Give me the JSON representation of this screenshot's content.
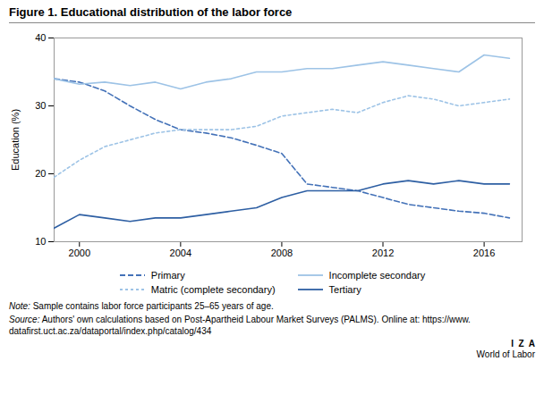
{
  "chart_data": {
    "type": "line",
    "title": "Figure 1. Educational distribution of the labor force",
    "y_label": "Education (%)",
    "x": [
      1999,
      2000,
      2001,
      2002,
      2003,
      2004,
      2005,
      2006,
      2007,
      2008,
      2009,
      2010,
      2011,
      2012,
      2013,
      2014,
      2015,
      2016,
      2017
    ],
    "series": [
      {
        "name": "Primary",
        "color": "#4472b8",
        "line_style": "dashed",
        "values": [
          34.0,
          33.5,
          32.2,
          30.0,
          28.0,
          26.5,
          26.0,
          25.3,
          24.2,
          23.0,
          18.5,
          18.0,
          17.5,
          16.5,
          15.5,
          15.0,
          14.5,
          14.2,
          13.5
        ]
      },
      {
        "name": "Incomplete secondary",
        "color": "#9dc3e6",
        "line_style": "solid",
        "values": [
          34.0,
          33.2,
          33.5,
          33.0,
          33.5,
          32.5,
          33.5,
          34.0,
          35.0,
          35.0,
          35.5,
          35.5,
          36.0,
          36.5,
          36.0,
          35.5,
          35.0,
          37.5,
          37.0
        ]
      },
      {
        "name": "Matric (complete secondary)",
        "color": "#9dc3e6",
        "line_style": "dotted",
        "values": [
          19.5,
          22.0,
          24.0,
          25.0,
          26.0,
          26.5,
          26.5,
          26.5,
          27.0,
          28.5,
          29.0,
          29.5,
          29.0,
          30.5,
          31.5,
          31.0,
          30.0,
          30.5,
          31.0
        ]
      },
      {
        "name": "Tertiary",
        "color": "#2e5fa3",
        "line_style": "solid",
        "values": [
          12.0,
          14.0,
          13.5,
          13.0,
          13.5,
          13.5,
          14.0,
          14.5,
          15.0,
          16.5,
          17.5,
          17.5,
          17.5,
          18.5,
          19.0,
          18.5,
          19.0,
          18.5,
          18.5
        ]
      }
    ],
    "xlim": [
      1999,
      2017.5
    ],
    "xticks": [
      2000,
      2004,
      2008,
      2012,
      2016
    ],
    "ylim": [
      10,
      40
    ],
    "yticks": [
      10,
      20,
      30,
      40
    ],
    "grid": false,
    "legend": "bottom",
    "note_label": "Note:",
    "note": " Sample contains labor force participants 25–65 years of age.",
    "source_label": "Source:",
    "source": " Authors' own calculations based on Post-Apartheid Labour Market Surveys (PALMS). Online at: https://www.\ndatafirst.uct.ac.za/dataportal/index.php/catalog/434",
    "annotations": [
      "I  Z  A",
      "World of Labor"
    ]
  }
}
